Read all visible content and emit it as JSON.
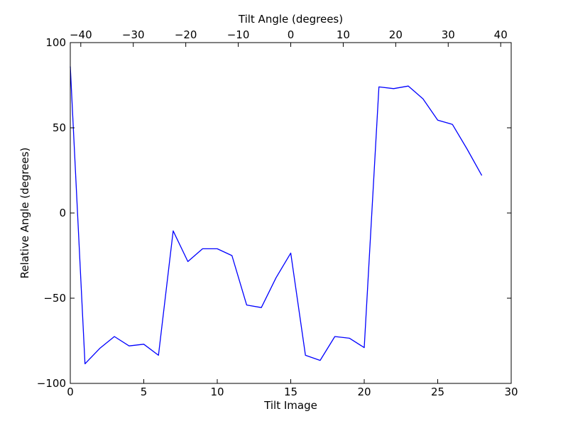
{
  "chart_data": {
    "type": "line",
    "xlabel": "Tilt Image",
    "ylabel": "Relative Angle (degrees)",
    "top_xlabel": "Tilt Angle (degrees)",
    "xlim": [
      0,
      30
    ],
    "ylim": [
      -100,
      100
    ],
    "top_xlim": [
      -42,
      42
    ],
    "xticks": [
      0,
      5,
      10,
      15,
      20,
      25,
      30
    ],
    "yticks": [
      -100,
      -50,
      0,
      50,
      100
    ],
    "top_xticks": [
      -40,
      -30,
      -20,
      -10,
      0,
      10,
      20,
      30,
      40
    ],
    "xtick_labels": [
      "0",
      "5",
      "10",
      "15",
      "20",
      "25",
      "30"
    ],
    "ytick_labels": [
      "−100",
      "−50",
      "0",
      "50",
      "100"
    ],
    "top_xtick_labels": [
      "−40",
      "−30",
      "−20",
      "−10",
      "0",
      "10",
      "20",
      "30",
      "40"
    ],
    "grid": false,
    "series": [
      {
        "color": "#0000ff",
        "x": [
          0,
          1,
          2,
          3,
          4,
          5,
          6,
          7,
          8,
          9,
          10,
          11,
          12,
          13,
          14,
          15,
          16,
          17,
          18,
          19,
          20,
          21,
          22,
          23,
          24,
          25,
          26,
          27,
          28
        ],
        "y": [
          86,
          -88.5,
          -79.5,
          -72.5,
          -78,
          -77,
          -83.5,
          -10.5,
          -28.5,
          -21,
          -21,
          -25,
          -54,
          -55.5,
          -38,
          -23.5,
          -83.5,
          -86.5,
          -72.5,
          -73.5,
          -79,
          74,
          73,
          74.5,
          67,
          54.5,
          52,
          37.5,
          22
        ]
      }
    ]
  }
}
